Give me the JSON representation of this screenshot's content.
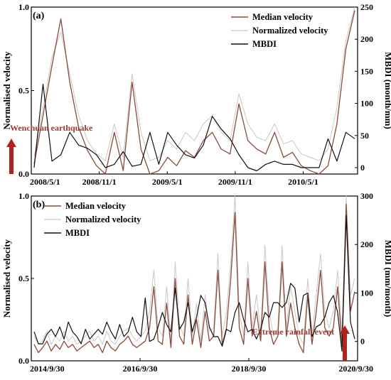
{
  "colors": {
    "median": "#8b4a3a",
    "normalized": "#c8c8c8",
    "mbdi": "#111111",
    "annotation": "#9b3a2e",
    "arrow": "#b22222",
    "axis": "#000000"
  },
  "chart_data": [
    {
      "type": "line",
      "panel_label": "(a)",
      "xlabel": "",
      "ylabel": "Normalised velocity",
      "y2label": "MBDI (month/mm)",
      "ylim": [
        0,
        1
      ],
      "y2lim": [
        -10,
        250
      ],
      "grid": false,
      "legend_position": "top-right",
      "x_tick_labels": [
        "2008/5/1",
        "2008/11/1",
        "2009/5/1",
        "2009/11/1",
        "2010/5/1"
      ],
      "y_tick_labels": [
        "0.0",
        "0.5",
        "1.0"
      ],
      "y2_tick_labels": [
        "0",
        "50",
        "100",
        "150",
        "200",
        "250"
      ],
      "annotation": "Wenchuan earthquake",
      "series": [
        {
          "name": "Median velocity",
          "axis": "left",
          "values": [
            0.06,
            0.35,
            0.65,
            0.93,
            0.55,
            0.28,
            0.14,
            0.05,
            0.0,
            0.25,
            0.02,
            0.55,
            0.15,
            0.0,
            0.02,
            0.1,
            0.05,
            0.14,
            0.1,
            0.2,
            0.25,
            0.15,
            0.12,
            0.42,
            0.2,
            0.15,
            0.12,
            0.25,
            0.1,
            0.13,
            0.05,
            0.02,
            0.0,
            0.05,
            0.3,
            0.75,
            0.98
          ]
        },
        {
          "name": "Normalized velocity",
          "axis": "left",
          "values": [
            0.1,
            0.4,
            0.7,
            0.85,
            0.6,
            0.35,
            0.2,
            0.12,
            0.08,
            0.3,
            0.1,
            0.6,
            0.25,
            0.08,
            0.1,
            0.2,
            0.15,
            0.25,
            0.2,
            0.3,
            0.35,
            0.25,
            0.2,
            0.48,
            0.3,
            0.22,
            0.2,
            0.3,
            0.18,
            0.2,
            0.12,
            0.1,
            0.08,
            0.15,
            0.4,
            0.8,
            1.0
          ]
        },
        {
          "name": "MBDI",
          "axis": "right",
          "values": [
            0,
            130,
            10,
            20,
            55,
            35,
            30,
            20,
            0,
            5,
            25,
            2,
            5,
            55,
            5,
            55,
            35,
            20,
            15,
            35,
            80,
            60,
            45,
            20,
            0,
            -5,
            5,
            10,
            5,
            5,
            0,
            0,
            0,
            45,
            10,
            55,
            45
          ]
        }
      ]
    },
    {
      "type": "line",
      "panel_label": "(b)",
      "xlabel": "",
      "ylabel": "Normalised velocity",
      "y2label": "MBDI (mm/month)",
      "ylim": [
        0,
        1
      ],
      "y2lim": [
        -40,
        300
      ],
      "grid": false,
      "legend_position": "top-left",
      "x_tick_labels": [
        "2014/9/30",
        "2016/9/30",
        "2018/9/30",
        "2020/9/30"
      ],
      "y_tick_labels": [
        "0.0",
        "0.5",
        "1.0"
      ],
      "y2_tick_labels": [
        "0",
        "100",
        "200",
        "300"
      ],
      "annotation": "Extreme rainfall event",
      "series": [
        {
          "name": "Median velocity",
          "axis": "left",
          "values": [
            0.1,
            0.05,
            0.08,
            0.12,
            0.06,
            0.1,
            0.07,
            0.12,
            0.08,
            0.1,
            0.06,
            0.08,
            0.1,
            0.12,
            0.08,
            0.1,
            0.05,
            0.12,
            0.08,
            0.06,
            0.1,
            0.12,
            0.15,
            0.1,
            0.08,
            0.1,
            0.12,
            0.2,
            0.45,
            0.12,
            0.1,
            0.35,
            0.08,
            0.5,
            0.15,
            0.1,
            0.4,
            0.1,
            0.25,
            0.08,
            0.3,
            0.12,
            0.15,
            0.55,
            0.1,
            0.2,
            0.5,
            0.9,
            0.2,
            0.1,
            0.5,
            0.15,
            0.3,
            0.12,
            0.6,
            0.2,
            0.1,
            0.15,
            0.6,
            0.15,
            0.35,
            0.2,
            0.1,
            0.05,
            0.4,
            0.1,
            0.3,
            0.55,
            0.2,
            0.15,
            0.2,
            0.45,
            0.1,
            0.95,
            0.3,
            0.42
          ]
        },
        {
          "name": "Normalized velocity",
          "axis": "left",
          "values": [
            0.15,
            0.1,
            0.12,
            0.18,
            0.1,
            0.15,
            0.12,
            0.18,
            0.12,
            0.15,
            0.1,
            0.12,
            0.15,
            0.18,
            0.12,
            0.15,
            0.1,
            0.18,
            0.12,
            0.1,
            0.15,
            0.18,
            0.2,
            0.15,
            0.12,
            0.15,
            0.18,
            0.3,
            0.55,
            0.2,
            0.15,
            0.45,
            0.12,
            0.6,
            0.22,
            0.15,
            0.5,
            0.15,
            0.35,
            0.12,
            0.4,
            0.18,
            0.2,
            0.65,
            0.15,
            0.3,
            0.6,
            1.0,
            0.3,
            0.15,
            0.6,
            0.2,
            0.4,
            0.18,
            0.7,
            0.3,
            0.15,
            0.2,
            0.7,
            0.2,
            0.45,
            0.3,
            0.15,
            0.1,
            0.5,
            0.15,
            0.4,
            0.65,
            0.3,
            0.2,
            0.3,
            0.55,
            0.15,
            1.0,
            0.4,
            0.5
          ]
        },
        {
          "name": "MBDI",
          "axis": "right",
          "values": [
            20,
            -5,
            -5,
            15,
            25,
            10,
            30,
            5,
            40,
            20,
            10,
            -5,
            25,
            5,
            15,
            25,
            15,
            40,
            20,
            5,
            35,
            10,
            20,
            50,
            20,
            10,
            90,
            0,
            5,
            30,
            60,
            35,
            20,
            110,
            25,
            40,
            80,
            20,
            50,
            95,
            80,
            30,
            10,
            10,
            -10,
            25,
            20,
            60,
            80,
            45,
            20,
            25,
            5,
            25,
            60,
            50,
            80,
            80,
            70,
            80,
            120,
            110,
            40,
            95,
            100,
            10,
            30,
            35,
            50,
            80,
            95,
            60,
            -20,
            260,
            40,
            5
          ]
        }
      ]
    }
  ]
}
